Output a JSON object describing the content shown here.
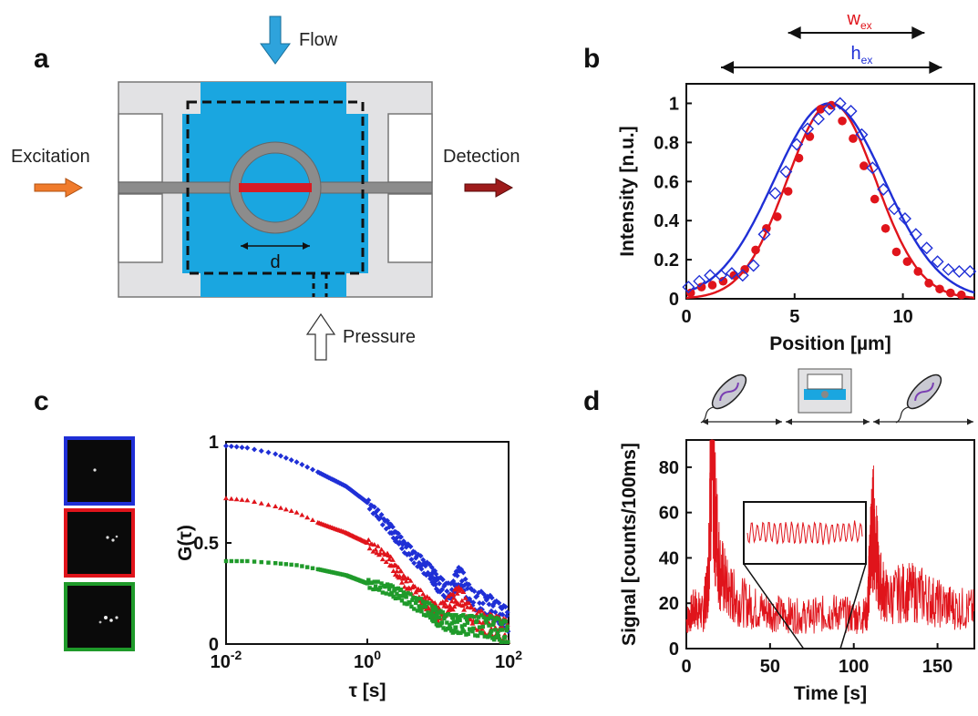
{
  "panels": {
    "a": "a",
    "b": "b",
    "c": "c",
    "d": "d"
  },
  "colors": {
    "fluid": "#1aa6e0",
    "chip": "#e2e2e4",
    "waveguide": "#8c8c8c",
    "red": "#e0141b",
    "blue": "#1f2fd6",
    "green": "#1f9a2a",
    "excitation": "#f07b2c",
    "detection": "#9e1b1b"
  },
  "schematic": {
    "flow_label": "Flow",
    "excitation_label": "Excitation",
    "detection_label": "Detection",
    "pressure_label": "Pressure",
    "d_label": "d"
  },
  "chart_data": [
    {
      "panel": "b",
      "type": "scatter",
      "xlabel": "Position [µm]",
      "ylabel": "Intensity [n.u.]",
      "xlim": [
        0,
        13.3
      ],
      "ylim": [
        0,
        1.1
      ],
      "xticks": [
        0,
        5,
        10
      ],
      "yticks": [
        0,
        0.2,
        0.4,
        0.6,
        0.8,
        1
      ],
      "annotations": {
        "w": "w",
        "w_sub": "ex",
        "h": "h",
        "h_sub": "ex"
      },
      "series": [
        {
          "marker": "filled-circle",
          "color": "#e0141b",
          "x": [
            0.2,
            0.7,
            1.2,
            1.7,
            2.2,
            2.7,
            3.2,
            3.7,
            4.2,
            4.7,
            5.2,
            5.7,
            6.2,
            6.7,
            7.2,
            7.7,
            8.2,
            8.7,
            9.2,
            9.7,
            10.2,
            10.7,
            11.2,
            11.7,
            12.2,
            12.7
          ],
          "y": [
            0.03,
            0.06,
            0.07,
            0.09,
            0.12,
            0.15,
            0.25,
            0.36,
            0.42,
            0.55,
            0.72,
            0.83,
            0.97,
            0.99,
            0.91,
            0.82,
            0.68,
            0.51,
            0.36,
            0.24,
            0.19,
            0.14,
            0.08,
            0.05,
            0.03,
            0.02
          ]
        },
        {
          "marker": "open-diamond",
          "color": "#1f2fd6",
          "x": [
            0.1,
            0.6,
            1.1,
            1.6,
            2.1,
            2.6,
            3.1,
            3.6,
            4.1,
            4.6,
            5.1,
            5.6,
            6.1,
            6.6,
            7.1,
            7.6,
            8.1,
            8.6,
            9.1,
            9.6,
            10.1,
            10.6,
            11.1,
            11.6,
            12.1,
            12.6,
            13.1
          ],
          "y": [
            0.06,
            0.09,
            0.12,
            0.12,
            0.13,
            0.12,
            0.17,
            0.33,
            0.54,
            0.65,
            0.79,
            0.87,
            0.92,
            0.97,
            1.0,
            0.96,
            0.84,
            0.67,
            0.56,
            0.46,
            0.41,
            0.33,
            0.26,
            0.19,
            0.15,
            0.14,
            0.14
          ]
        }
      ],
      "fits": [
        {
          "color": "#e0141b",
          "center": 6.7,
          "sigma": 2.05,
          "amplitude": 1
        },
        {
          "color": "#1f2fd6",
          "center": 6.6,
          "sigma": 2.55,
          "amplitude": 1
        }
      ]
    },
    {
      "panel": "c",
      "type": "scatter",
      "xlabel": "τ [s]",
      "ylabel": "G(τ)",
      "xscale": "log",
      "xlim": [
        0.01,
        100
      ],
      "ylim": [
        0,
        1
      ],
      "xticks": [
        {
          "base": "10",
          "exp": "-2",
          "value": 0.01
        },
        {
          "base": "10",
          "exp": "0",
          "value": 1
        },
        {
          "base": "10",
          "exp": "2",
          "value": 100
        }
      ],
      "yticks": [
        0,
        0.5,
        1
      ],
      "series": [
        {
          "color": "#1f2fd6",
          "marker": "diamond",
          "x": [
            0.01,
            0.02,
            0.05,
            0.1,
            0.2,
            0.5,
            1,
            2,
            3,
            5,
            8,
            10,
            15,
            20,
            30,
            50,
            70,
            100
          ],
          "y": [
            0.98,
            0.97,
            0.94,
            0.9,
            0.85,
            0.78,
            0.7,
            0.58,
            0.5,
            0.42,
            0.35,
            0.3,
            0.25,
            0.35,
            0.22,
            0.2,
            0.15,
            0.12
          ]
        },
        {
          "color": "#e0141b",
          "marker": "triangle",
          "x": [
            0.01,
            0.02,
            0.05,
            0.1,
            0.2,
            0.5,
            1,
            2,
            3,
            5,
            8,
            10,
            15,
            20,
            30,
            50,
            70,
            100
          ],
          "y": [
            0.72,
            0.71,
            0.68,
            0.65,
            0.6,
            0.55,
            0.5,
            0.42,
            0.33,
            0.25,
            0.18,
            0.15,
            0.2,
            0.25,
            0.13,
            0.1,
            0.08,
            0.06
          ]
        },
        {
          "color": "#1f9a2a",
          "marker": "square",
          "x": [
            0.01,
            0.02,
            0.05,
            0.1,
            0.2,
            0.5,
            1,
            2,
            3,
            5,
            8,
            10,
            15,
            20,
            30,
            50,
            70,
            100
          ],
          "y": [
            0.41,
            0.41,
            0.4,
            0.39,
            0.37,
            0.34,
            0.3,
            0.27,
            0.24,
            0.2,
            0.16,
            0.13,
            0.1,
            0.1,
            0.09,
            0.09,
            0.07,
            0.05
          ]
        }
      ]
    },
    {
      "panel": "d",
      "type": "line",
      "xlabel": "Time [s]",
      "ylabel": "Signal [counts/100ms]",
      "xlim": [
        0,
        172
      ],
      "ylim": [
        0,
        92
      ],
      "xticks": [
        0,
        50,
        100,
        150
      ],
      "yticks": [
        0,
        20,
        40,
        60,
        80
      ],
      "series": [
        {
          "color": "#e0141b",
          "x": [
            0,
            5,
            10,
            13,
            15,
            17,
            20,
            25,
            30,
            40,
            50,
            60,
            70,
            80,
            90,
            100,
            108,
            110,
            112,
            115,
            120,
            130,
            140,
            150,
            160,
            172
          ],
          "y": [
            12,
            18,
            15,
            30,
            90,
            60,
            35,
            25,
            22,
            18,
            16,
            15,
            14,
            15,
            16,
            14,
            15,
            45,
            55,
            30,
            22,
            25,
            24,
            20,
            18,
            17
          ]
        }
      ],
      "inset": {
        "description_time_range": [
          70,
          92
        ]
      }
    }
  ]
}
